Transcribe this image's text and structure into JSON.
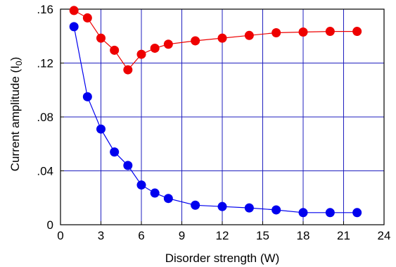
{
  "chart_data": {
    "type": "scatter",
    "xlabel": "Disorder strength (W)",
    "ylabel": {
      "text": "Current amplitude (I",
      "subscript": "0",
      "suffix": ")"
    },
    "xlim": [
      0,
      24
    ],
    "ylim": [
      0,
      0.16
    ],
    "xticks": [
      0,
      3,
      6,
      9,
      12,
      15,
      18,
      21,
      24
    ],
    "xtick_labels": [
      "0",
      "3",
      "6",
      "9",
      "12",
      "15",
      "18",
      "21",
      "24"
    ],
    "yticks": [
      0,
      0.04,
      0.08,
      0.12,
      0.16
    ],
    "ytick_labels": [
      "0",
      ".04",
      ".08",
      ".12",
      ".16"
    ],
    "grid": true,
    "grid_color": "#1f1fbf",
    "series": [
      {
        "color": "#ee0000",
        "x": [
          1,
          2,
          3,
          4,
          5,
          6,
          7,
          8,
          10,
          12,
          14,
          16,
          18,
          20,
          22
        ],
        "y": [
          0.159,
          0.1535,
          0.1385,
          0.1295,
          0.115,
          0.1265,
          0.131,
          0.134,
          0.1365,
          0.1385,
          0.1405,
          0.1425,
          0.143,
          0.1435,
          0.1435
        ]
      },
      {
        "color": "#0000ee",
        "x": [
          1,
          2,
          3,
          4,
          5,
          6,
          7,
          8,
          10,
          12,
          14,
          16,
          18,
          20,
          22
        ],
        "y": [
          0.147,
          0.095,
          0.071,
          0.054,
          0.044,
          0.0295,
          0.0235,
          0.0195,
          0.0145,
          0.0135,
          0.0125,
          0.011,
          0.009,
          0.009,
          0.009
        ]
      }
    ]
  }
}
